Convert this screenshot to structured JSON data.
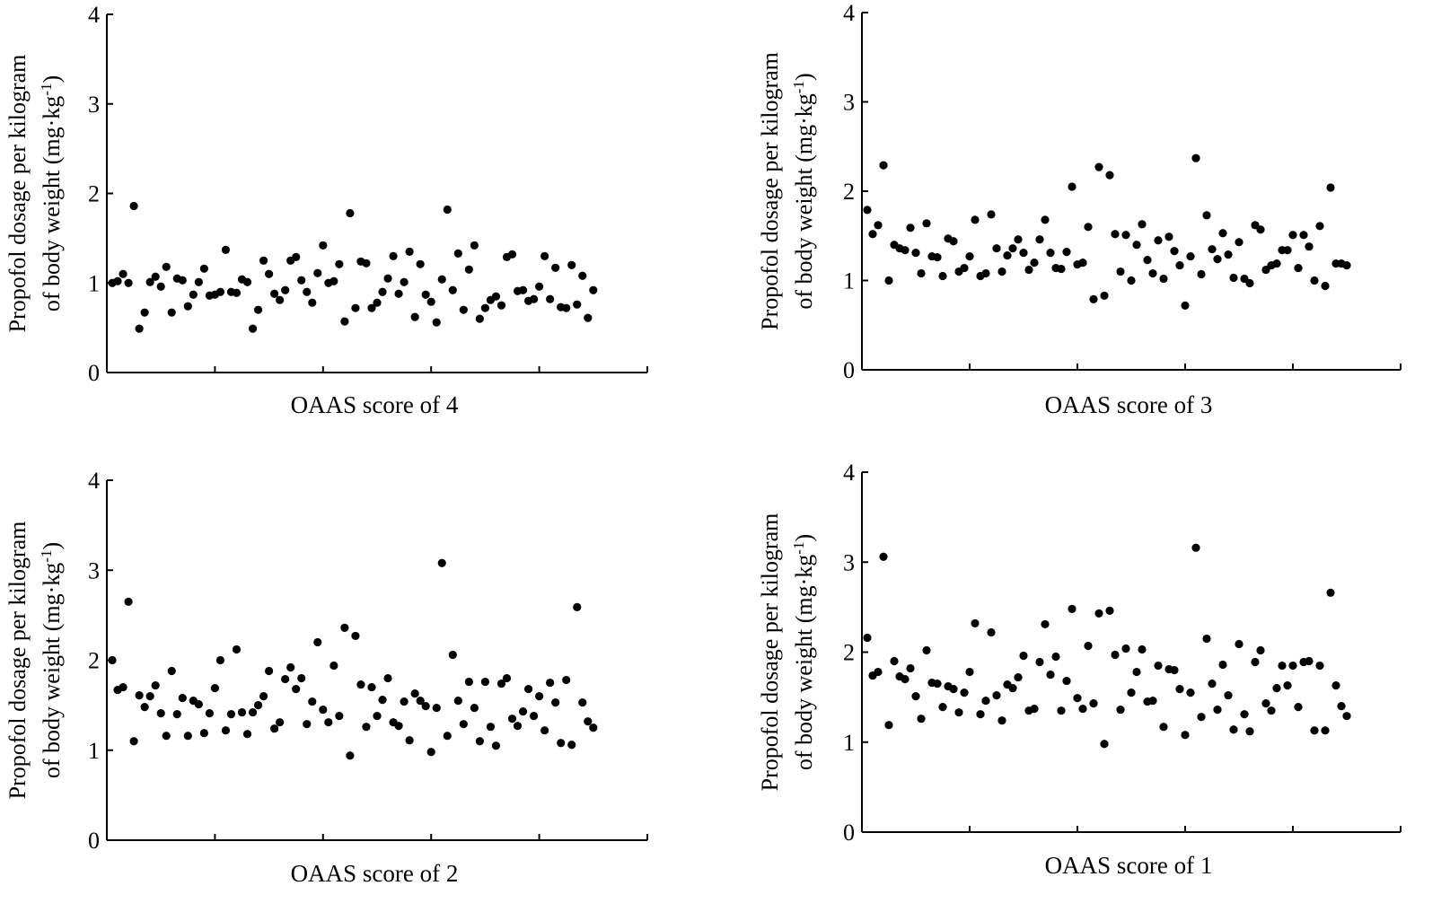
{
  "chart_data": [
    {
      "type": "scatter",
      "xlabel": "OAAS score of 4",
      "ylabel_line1": "Propofol dosage per kilogram",
      "ylabel_line2": "of body weight (mg·kg",
      "ylabel_sup": "-1",
      "ylabel_close": ")",
      "ylim": [
        0,
        4
      ],
      "yticks": [
        "0",
        "1",
        "2",
        "3",
        "4"
      ],
      "xlim": [
        0,
        100
      ],
      "xtick_count": 5,
      "grid": false,
      "x": [
        1,
        2,
        3,
        4,
        5,
        6,
        7,
        8,
        9,
        10,
        11,
        12,
        13,
        14,
        15,
        16,
        17,
        18,
        19,
        20,
        21,
        22,
        23,
        24,
        25,
        26,
        27,
        28,
        29,
        30,
        31,
        32,
        33,
        34,
        35,
        36,
        37,
        38,
        39,
        40,
        41,
        42,
        43,
        44,
        45,
        46,
        47,
        48,
        49,
        50,
        51,
        52,
        53,
        54,
        55,
        56,
        57,
        58,
        59,
        60,
        61,
        62,
        63,
        64,
        65,
        66,
        67,
        68,
        69,
        70,
        71,
        72,
        73,
        74,
        75,
        76,
        77,
        78,
        79,
        80,
        81,
        82,
        83,
        84,
        85,
        86,
        87,
        88,
        89,
        90
      ],
      "y": [
        1.0,
        1.02,
        1.1,
        1.0,
        1.86,
        0.49,
        0.67,
        1.01,
        1.07,
        0.96,
        1.18,
        0.67,
        1.05,
        1.03,
        0.74,
        0.87,
        1.01,
        1.16,
        0.86,
        0.87,
        0.9,
        1.37,
        0.9,
        0.89,
        1.04,
        1.01,
        0.49,
        0.7,
        1.25,
        1.1,
        0.88,
        0.81,
        0.92,
        1.25,
        1.29,
        1.03,
        0.9,
        0.78,
        1.11,
        1.42,
        1.0,
        1.02,
        1.21,
        0.57,
        1.78,
        0.72,
        1.24,
        1.22,
        0.72,
        0.78,
        0.9,
        1.05,
        1.3,
        0.88,
        1.01,
        1.35,
        0.62,
        1.21,
        0.87,
        0.79,
        0.56,
        1.04,
        1.82,
        0.92,
        1.33,
        0.7,
        1.15,
        1.42,
        0.6,
        0.72,
        0.81,
        0.85,
        0.75,
        1.29,
        1.32,
        0.91,
        0.92,
        0.8,
        0.82,
        0.96,
        1.3,
        0.82,
        1.17,
        0.73,
        0.72,
        1.2,
        0.76,
        1.08,
        0.61,
        0.92
      ]
    },
    {
      "type": "scatter",
      "xlabel": "OAAS score of 3",
      "ylabel_line1": "Propofol dosage per kilogram",
      "ylabel_line2": "of body weight (mg·kg",
      "ylabel_sup": "-1",
      "ylabel_close": ")",
      "ylim": [
        0,
        4
      ],
      "yticks": [
        "0",
        "1",
        "2",
        "3",
        "4"
      ],
      "xlim": [
        0,
        100
      ],
      "xtick_count": 5,
      "grid": false,
      "x": [
        1,
        2,
        3,
        4,
        5,
        6,
        7,
        8,
        9,
        10,
        11,
        12,
        13,
        14,
        15,
        16,
        17,
        18,
        19,
        20,
        21,
        22,
        23,
        24,
        25,
        26,
        27,
        28,
        29,
        30,
        31,
        32,
        33,
        34,
        35,
        36,
        37,
        38,
        39,
        40,
        41,
        42,
        43,
        44,
        45,
        46,
        47,
        48,
        49,
        50,
        51,
        52,
        53,
        54,
        55,
        56,
        57,
        58,
        59,
        60,
        61,
        62,
        63,
        64,
        65,
        66,
        67,
        68,
        69,
        70,
        71,
        72,
        73,
        74,
        75,
        76,
        77,
        78,
        79,
        80,
        81,
        82,
        83,
        84,
        85,
        86,
        87,
        88,
        89,
        90
      ],
      "y": [
        1.79,
        1.52,
        1.62,
        2.29,
        1.0,
        1.4,
        1.36,
        1.34,
        1.59,
        1.31,
        1.08,
        1.64,
        1.27,
        1.26,
        1.05,
        1.47,
        1.44,
        1.1,
        1.14,
        1.27,
        1.68,
        1.05,
        1.08,
        1.74,
        1.36,
        1.1,
        1.28,
        1.36,
        1.46,
        1.31,
        1.12,
        1.2,
        1.46,
        1.68,
        1.31,
        1.14,
        1.13,
        1.32,
        2.05,
        1.18,
        1.2,
        1.6,
        0.79,
        2.27,
        0.83,
        2.18,
        1.52,
        1.1,
        1.51,
        1.0,
        1.4,
        1.63,
        1.23,
        1.08,
        1.45,
        1.02,
        1.49,
        1.33,
        1.17,
        0.72,
        1.27,
        2.37,
        1.07,
        1.73,
        1.35,
        1.24,
        1.53,
        1.29,
        1.03,
        1.43,
        1.02,
        0.97,
        1.62,
        1.57,
        1.12,
        1.17,
        1.19,
        1.34,
        1.34,
        1.51,
        1.14,
        1.51,
        1.38,
        1.0,
        1.61,
        0.94,
        2.04,
        1.19,
        1.19,
        1.17
      ]
    },
    {
      "type": "scatter",
      "xlabel": "OAAS score of 2",
      "ylabel_line1": "Propofol dosage per kilogram",
      "ylabel_line2": "of body weight (mg·kg",
      "ylabel_sup": "-1",
      "ylabel_close": ")",
      "ylim": [
        0,
        4
      ],
      "yticks": [
        "0",
        "1",
        "2",
        "3",
        "4"
      ],
      "xlim": [
        0,
        100
      ],
      "xtick_count": 5,
      "grid": false,
      "x": [
        1,
        2,
        3,
        4,
        5,
        6,
        7,
        8,
        9,
        10,
        11,
        12,
        13,
        14,
        15,
        16,
        17,
        18,
        19,
        20,
        21,
        22,
        23,
        24,
        25,
        26,
        27,
        28,
        29,
        30,
        31,
        32,
        33,
        34,
        35,
        36,
        37,
        38,
        39,
        40,
        41,
        42,
        43,
        44,
        45,
        46,
        47,
        48,
        49,
        50,
        51,
        52,
        53,
        54,
        55,
        56,
        57,
        58,
        59,
        60,
        61,
        62,
        63,
        64,
        65,
        66,
        67,
        68,
        69,
        70,
        71,
        72,
        73,
        74,
        75,
        76,
        77,
        78,
        79,
        80,
        81,
        82,
        83,
        84,
        85,
        86,
        87,
        88,
        89,
        90
      ],
      "y": [
        2.0,
        1.67,
        1.7,
        2.65,
        1.1,
        1.61,
        1.48,
        1.6,
        1.72,
        1.41,
        1.16,
        1.88,
        1.4,
        1.58,
        1.16,
        1.55,
        1.51,
        1.19,
        1.41,
        1.69,
        2.0,
        1.22,
        1.4,
        2.12,
        1.42,
        1.18,
        1.42,
        1.5,
        1.6,
        1.88,
        1.24,
        1.31,
        1.79,
        1.92,
        1.68,
        1.8,
        1.29,
        1.54,
        2.2,
        1.45,
        1.31,
        1.94,
        1.38,
        2.36,
        0.94,
        2.27,
        1.73,
        1.26,
        1.7,
        1.38,
        1.56,
        1.8,
        1.31,
        1.27,
        1.54,
        1.11,
        1.63,
        1.55,
        1.49,
        0.98,
        1.47,
        3.08,
        1.16,
        2.06,
        1.55,
        1.29,
        1.76,
        1.47,
        1.1,
        1.76,
        1.26,
        1.05,
        1.74,
        1.8,
        1.35,
        1.27,
        1.43,
        1.68,
        1.38,
        1.6,
        1.22,
        1.75,
        1.53,
        1.08,
        1.78,
        1.06,
        2.59,
        1.53,
        1.32,
        1.25
      ]
    },
    {
      "type": "scatter",
      "xlabel": "OAAS score of 1",
      "ylabel_line1": "Propofol dosage per kilogram",
      "ylabel_line2": "of body weight (mg·kg",
      "ylabel_sup": "-1",
      "ylabel_close": ")",
      "ylim": [
        0,
        4
      ],
      "yticks": [
        "0",
        "1",
        "2",
        "3",
        "4"
      ],
      "xlim": [
        0,
        100
      ],
      "xtick_count": 5,
      "grid": false,
      "x": [
        1,
        2,
        3,
        4,
        5,
        6,
        7,
        8,
        9,
        10,
        11,
        12,
        13,
        14,
        15,
        16,
        17,
        18,
        19,
        20,
        21,
        22,
        23,
        24,
        25,
        26,
        27,
        28,
        29,
        30,
        31,
        32,
        33,
        34,
        35,
        36,
        37,
        38,
        39,
        40,
        41,
        42,
        43,
        44,
        45,
        46,
        47,
        48,
        49,
        50,
        51,
        52,
        53,
        54,
        55,
        56,
        57,
        58,
        59,
        60,
        61,
        62,
        63,
        64,
        65,
        66,
        67,
        68,
        69,
        70,
        71,
        72,
        73,
        74,
        75,
        76,
        77,
        78,
        79,
        80,
        81,
        82,
        83,
        84,
        85,
        86,
        87,
        88,
        89,
        90
      ],
      "y": [
        2.16,
        1.74,
        1.78,
        3.06,
        1.19,
        1.9,
        1.73,
        1.7,
        1.82,
        1.51,
        1.26,
        2.02,
        1.66,
        1.65,
        1.39,
        1.62,
        1.59,
        1.33,
        1.55,
        1.78,
        2.32,
        1.31,
        1.46,
        2.22,
        1.52,
        1.24,
        1.64,
        1.6,
        1.72,
        1.96,
        1.35,
        1.37,
        1.89,
        2.31,
        1.75,
        1.95,
        1.35,
        1.68,
        2.48,
        1.49,
        1.37,
        2.07,
        1.43,
        2.43,
        0.98,
        2.46,
        1.97,
        1.36,
        2.04,
        1.55,
        1.78,
        2.03,
        1.45,
        1.46,
        1.85,
        1.17,
        1.81,
        1.8,
        1.59,
        1.08,
        1.55,
        3.16,
        1.28,
        2.15,
        1.65,
        1.36,
        1.86,
        1.52,
        1.14,
        2.09,
        1.31,
        1.12,
        1.89,
        2.02,
        1.43,
        1.35,
        1.6,
        1.85,
        1.63,
        1.85,
        1.39,
        1.89,
        1.9,
        1.13,
        1.85,
        1.13,
        2.66,
        1.63,
        1.4,
        1.29
      ]
    }
  ]
}
